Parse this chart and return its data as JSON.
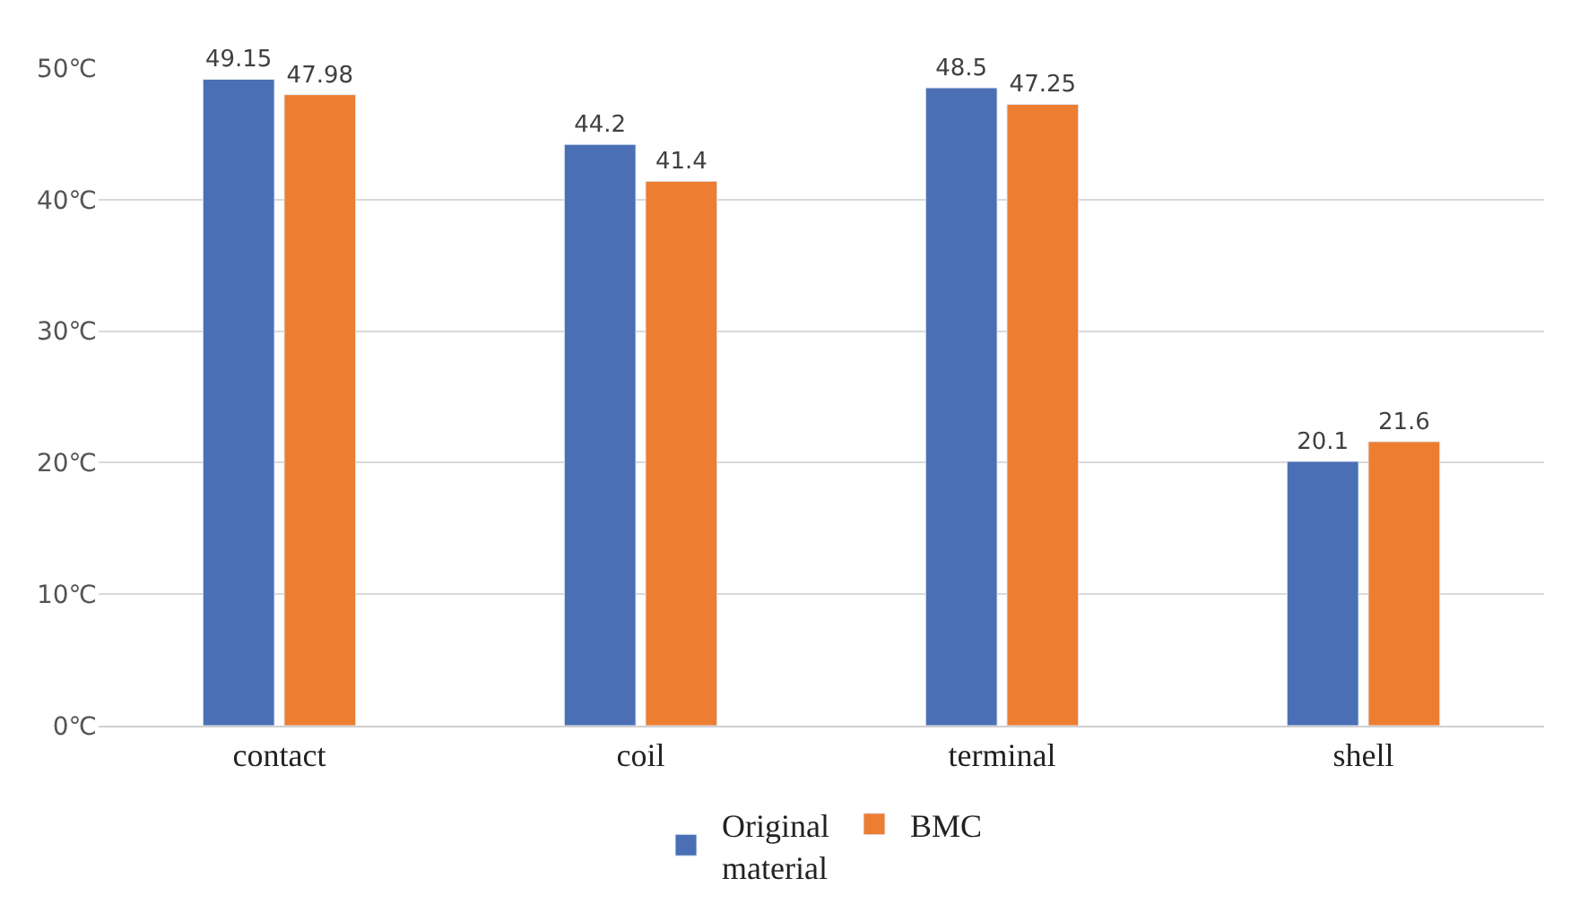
{
  "chart_data": {
    "type": "bar",
    "categories": [
      "contact",
      "coil",
      "terminal",
      "shell"
    ],
    "series": [
      {
        "name": "Original material",
        "color": "#4a6fb5",
        "values": [
          49.15,
          44.2,
          48.5,
          20.1
        ]
      },
      {
        "name": "BMC",
        "color": "#ed7d31",
        "values": [
          47.98,
          41.4,
          47.25,
          21.6
        ]
      }
    ],
    "ylim": [
      0,
      50
    ],
    "yticks": [
      {
        "value": 0,
        "label": "0℃"
      },
      {
        "value": 10,
        "label": "10℃"
      },
      {
        "value": 20,
        "label": "20℃"
      },
      {
        "value": 30,
        "label": "30℃"
      },
      {
        "value": 40,
        "label": "40℃"
      },
      {
        "value": 50,
        "label": "50℃"
      }
    ],
    "grid": "y",
    "legend": "bottom",
    "data_labels": true
  }
}
